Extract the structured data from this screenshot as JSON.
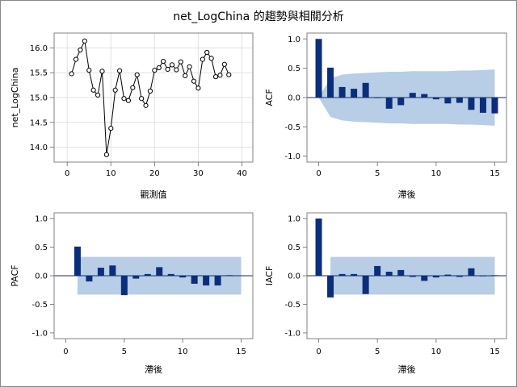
{
  "title": "net_LogChina 的趨勢與相關分析",
  "colors": {
    "bar": "#0b2e7a",
    "band": "#b8cde6",
    "series_line": "#000000",
    "grid": "#e2e2e2",
    "zero_line": "#0b2e7a",
    "axis": "#808080"
  },
  "chart_data": [
    {
      "id": "trend",
      "type": "line",
      "xlabel": "觀測值",
      "ylabel": "net_LogChina",
      "xlim": [
        -3,
        42.5
      ],
      "ylim": [
        13.7,
        16.3
      ],
      "xticks": [
        0,
        10,
        20,
        30,
        40
      ],
      "yticks": [
        14.0,
        14.5,
        15.0,
        15.5,
        16.0
      ],
      "ytick_labels": [
        "14.0",
        "14.5",
        "15.0",
        "15.5",
        "16.0"
      ],
      "grid": true,
      "markers": "open-circle",
      "x": [
        1,
        2,
        3,
        4,
        5,
        6,
        7,
        8,
        9,
        10,
        11,
        12,
        13,
        14,
        15,
        16,
        17,
        18,
        19,
        20,
        21,
        22,
        23,
        24,
        25,
        26,
        27,
        28,
        29,
        30,
        31,
        32,
        33,
        34,
        35,
        36,
        37
      ],
      "y": [
        15.48,
        15.77,
        15.96,
        16.14,
        15.55,
        15.15,
        15.05,
        15.53,
        13.85,
        14.38,
        15.15,
        15.54,
        14.98,
        14.94,
        15.2,
        15.46,
        14.98,
        14.84,
        15.13,
        15.55,
        15.6,
        15.73,
        15.57,
        15.66,
        15.56,
        15.72,
        15.44,
        15.62,
        15.33,
        15.19,
        15.77,
        15.91,
        15.79,
        15.42,
        15.45,
        15.67,
        15.46
      ]
    },
    {
      "id": "acf",
      "type": "bar",
      "xlabel": "滯後",
      "ylabel": "ACF",
      "xlim": [
        -1,
        16
      ],
      "ylim": [
        -1.1,
        1.1
      ],
      "xticks": [
        0,
        5,
        10,
        15
      ],
      "yticks": [
        -1.0,
        -0.5,
        0.0,
        0.5,
        1.0
      ],
      "ytick_labels": [
        "-1.0",
        "-0.5",
        "0.0",
        "0.5",
        "1.0"
      ],
      "lags": [
        0,
        1,
        2,
        3,
        4,
        5,
        6,
        7,
        8,
        9,
        10,
        11,
        12,
        13,
        14,
        15
      ],
      "values": [
        1.0,
        0.51,
        0.18,
        0.15,
        0.25,
        -0.01,
        -0.19,
        -0.13,
        0.08,
        0.06,
        -0.03,
        -0.1,
        -0.09,
        -0.21,
        -0.26,
        -0.27
      ],
      "band_lags": [
        0,
        1,
        2,
        3,
        4,
        5,
        6,
        7,
        8,
        9,
        10,
        11,
        12,
        13,
        14,
        15
      ],
      "band_upper": [
        0,
        0.33,
        0.39,
        0.41,
        0.42,
        0.43,
        0.44,
        0.44,
        0.45,
        0.45,
        0.45,
        0.45,
        0.46,
        0.46,
        0.47,
        0.48
      ],
      "band_lower": [
        0,
        -0.33,
        -0.39,
        -0.41,
        -0.42,
        -0.43,
        -0.44,
        -0.44,
        -0.45,
        -0.45,
        -0.45,
        -0.45,
        -0.46,
        -0.46,
        -0.47,
        -0.48
      ]
    },
    {
      "id": "pacf",
      "type": "bar",
      "xlabel": "滯後",
      "ylabel": "PACF",
      "xlim": [
        -1,
        16
      ],
      "ylim": [
        -1.1,
        1.1
      ],
      "xticks": [
        0,
        5,
        10,
        15
      ],
      "yticks": [
        -1.0,
        -0.5,
        0.0,
        0.5,
        1.0
      ],
      "ytick_labels": [
        "-1.0",
        "-0.5",
        "0.0",
        "0.5",
        "1.0"
      ],
      "lags": [
        1,
        2,
        3,
        4,
        5,
        6,
        7,
        8,
        9,
        10,
        11,
        12,
        13,
        14,
        15
      ],
      "values": [
        0.51,
        -0.1,
        0.14,
        0.18,
        -0.34,
        -0.05,
        0.03,
        0.15,
        0.03,
        -0.03,
        -0.14,
        -0.17,
        -0.17,
        0.01,
        0.0
      ],
      "band_lags": [
        1,
        15
      ],
      "band_upper": [
        0.33,
        0.33
      ],
      "band_lower": [
        -0.33,
        -0.33
      ]
    },
    {
      "id": "iacf",
      "type": "bar",
      "xlabel": "滯後",
      "ylabel": "IACF",
      "xlim": [
        -1,
        16
      ],
      "ylim": [
        -1.1,
        1.1
      ],
      "xticks": [
        0,
        5,
        10,
        15
      ],
      "yticks": [
        -1.0,
        -0.5,
        0.0,
        0.5,
        1.0
      ],
      "ytick_labels": [
        "-1.0",
        "-0.5",
        "0.0",
        "0.5",
        "1.0"
      ],
      "lags": [
        0,
        1,
        2,
        3,
        4,
        5,
        6,
        7,
        8,
        9,
        10,
        11,
        12,
        13,
        14,
        15
      ],
      "values": [
        1.0,
        -0.38,
        0.03,
        0.03,
        -0.32,
        0.17,
        0.07,
        0.1,
        -0.02,
        -0.09,
        -0.03,
        0.02,
        -0.02,
        0.13,
        -0.01,
        0.01
      ],
      "band_lags": [
        1,
        15
      ],
      "band_upper": [
        0.33,
        0.33
      ],
      "band_lower": [
        -0.33,
        -0.33
      ]
    }
  ]
}
